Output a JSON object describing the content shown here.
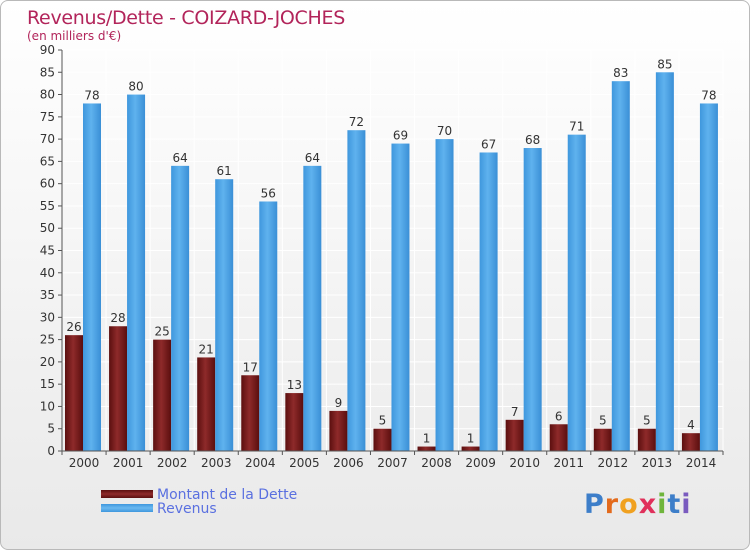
{
  "title": "Revenus/Dette - COIZARD-JOCHES",
  "subtitle": "(en milliers d'€)",
  "brand": {
    "letters": [
      "P",
      "r",
      "o",
      "x",
      "i",
      "t",
      "i"
    ],
    "colors": [
      "#3d7ec9",
      "#e36a1c",
      "#f0a120",
      "#e0305b",
      "#6fb53c",
      "#3d7ec9",
      "#7a5bbf"
    ]
  },
  "chart_data": {
    "type": "bar",
    "title": "Revenus/Dette - COIZARD-JOCHES",
    "ylabel": "(en milliers d'€)",
    "xlabel": "",
    "ylim": [
      0,
      90
    ],
    "yticks": [
      0,
      5,
      10,
      15,
      20,
      25,
      30,
      35,
      40,
      45,
      50,
      55,
      60,
      65,
      70,
      75,
      80,
      85,
      90
    ],
    "grid": true,
    "legend": "bottom-left",
    "categories": [
      "2000",
      "2001",
      "2002",
      "2003",
      "2004",
      "2005",
      "2006",
      "2007",
      "2008",
      "2009",
      "2010",
      "2011",
      "2012",
      "2013",
      "2014"
    ],
    "series": [
      {
        "name": "Montant de la Dette",
        "color": "#7a1c1c",
        "values": [
          26,
          28,
          25,
          21,
          17,
          13,
          9,
          5,
          1,
          1,
          7,
          6,
          5,
          5,
          4
        ]
      },
      {
        "name": "Revenus",
        "color": "#4aa3e6",
        "values": [
          78,
          80,
          64,
          61,
          56,
          64,
          72,
          69,
          70,
          67,
          68,
          71,
          83,
          85,
          78
        ]
      }
    ]
  }
}
